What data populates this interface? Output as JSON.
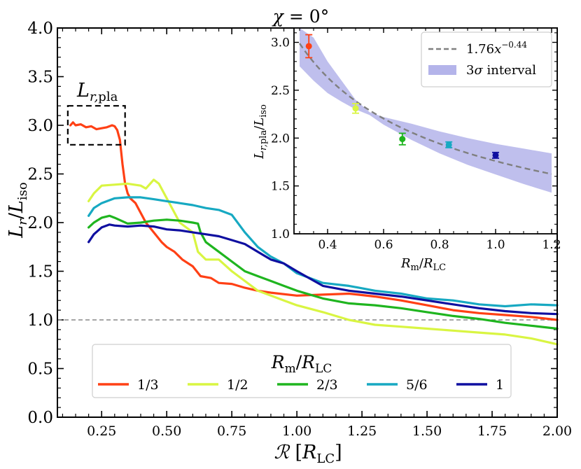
{
  "chart_data": [
    {
      "type": "line",
      "title": "",
      "xlabel": "ℛ [R_LC]",
      "ylabel": "L_r / L_iso",
      "xlim": [
        0.08,
        2.0
      ],
      "ylim": [
        0.0,
        4.0
      ],
      "x_ticks": [
        "0.25",
        "0.50",
        "0.75",
        "1.00",
        "1.25",
        "1.50",
        "1.75",
        "2.00"
      ],
      "y_ticks": [
        "0.0",
        "0.5",
        "1.0",
        "1.5",
        "2.0",
        "2.5",
        "3.0",
        "3.5",
        "4.0"
      ],
      "reference_line": {
        "y": 1.0,
        "style": "dashed",
        "color": "#888888"
      },
      "annotation": {
        "text": "L_{r,pla}",
        "x_range": [
          0.12,
          0.34
        ],
        "y_range": [
          2.8,
          3.2
        ]
      },
      "legend": {
        "title": "R_m / R_LC",
        "placement": "lower-center",
        "entries": [
          "1/3",
          "1/2",
          "2/3",
          "5/6",
          "1"
        ]
      },
      "series": [
        {
          "name": "1/3",
          "color": "#ff4015",
          "x": [
            0.13,
            0.14,
            0.15,
            0.17,
            0.19,
            0.21,
            0.23,
            0.25,
            0.27,
            0.29,
            0.3,
            0.31,
            0.32,
            0.33,
            0.34,
            0.35,
            0.36,
            0.38,
            0.4,
            0.42,
            0.45,
            0.48,
            0.5,
            0.53,
            0.56,
            0.6,
            0.63,
            0.67,
            0.7,
            0.75,
            0.8,
            0.85,
            0.9,
            1.0,
            1.1,
            1.2,
            1.3,
            1.4,
            1.5,
            1.6,
            1.7,
            1.8,
            1.9,
            2.0
          ],
          "y": [
            3.0,
            3.03,
            3.0,
            3.01,
            2.98,
            2.99,
            2.96,
            2.97,
            2.98,
            3.0,
            2.99,
            2.95,
            2.85,
            2.6,
            2.4,
            2.3,
            2.25,
            2.2,
            2.1,
            2.0,
            1.9,
            1.8,
            1.75,
            1.7,
            1.62,
            1.55,
            1.45,
            1.43,
            1.38,
            1.37,
            1.33,
            1.3,
            1.28,
            1.25,
            1.26,
            1.27,
            1.24,
            1.2,
            1.15,
            1.1,
            1.07,
            1.05,
            1.03,
            1.0
          ]
        },
        {
          "name": "1/2",
          "color": "#d9f542",
          "x": [
            0.2,
            0.22,
            0.25,
            0.3,
            0.35,
            0.4,
            0.42,
            0.45,
            0.47,
            0.5,
            0.55,
            0.6,
            0.62,
            0.65,
            0.7,
            0.75,
            0.8,
            0.85,
            0.9,
            0.95,
            1.0,
            1.1,
            1.2,
            1.3,
            1.4,
            1.5,
            1.6,
            1.7,
            1.8,
            1.9,
            2.0
          ],
          "y": [
            2.22,
            2.3,
            2.38,
            2.39,
            2.4,
            2.38,
            2.35,
            2.44,
            2.4,
            2.25,
            2.0,
            1.9,
            1.7,
            1.62,
            1.62,
            1.5,
            1.4,
            1.3,
            1.25,
            1.2,
            1.15,
            1.08,
            1.0,
            0.95,
            0.93,
            0.91,
            0.89,
            0.87,
            0.85,
            0.81,
            0.75
          ]
        },
        {
          "name": "2/3",
          "color": "#1fb51f",
          "x": [
            0.2,
            0.22,
            0.25,
            0.28,
            0.3,
            0.35,
            0.4,
            0.45,
            0.5,
            0.55,
            0.6,
            0.62,
            0.63,
            0.65,
            0.7,
            0.75,
            0.8,
            0.85,
            0.9,
            0.95,
            1.0,
            1.1,
            1.2,
            1.3,
            1.4,
            1.5,
            1.6,
            1.7,
            1.8,
            1.9,
            2.0
          ],
          "y": [
            1.95,
            2.0,
            2.05,
            2.07,
            2.05,
            1.99,
            2.0,
            2.02,
            2.03,
            2.02,
            2.0,
            1.99,
            1.9,
            1.8,
            1.7,
            1.6,
            1.5,
            1.45,
            1.4,
            1.35,
            1.3,
            1.22,
            1.17,
            1.15,
            1.12,
            1.08,
            1.04,
            1.01,
            0.97,
            0.94,
            0.91
          ]
        },
        {
          "name": "5/6",
          "color": "#17a9c2",
          "x": [
            0.2,
            0.22,
            0.25,
            0.3,
            0.35,
            0.4,
            0.45,
            0.5,
            0.55,
            0.6,
            0.65,
            0.7,
            0.75,
            0.8,
            0.85,
            0.9,
            0.95,
            1.0,
            1.1,
            1.2,
            1.3,
            1.4,
            1.5,
            1.6,
            1.7,
            1.8,
            1.9,
            2.0
          ],
          "y": [
            2.07,
            2.15,
            2.2,
            2.25,
            2.26,
            2.26,
            2.24,
            2.22,
            2.2,
            2.18,
            2.15,
            2.13,
            2.08,
            1.9,
            1.75,
            1.65,
            1.58,
            1.48,
            1.38,
            1.35,
            1.3,
            1.27,
            1.22,
            1.2,
            1.16,
            1.14,
            1.16,
            1.15
          ]
        },
        {
          "name": "1",
          "color": "#0f0fa0",
          "x": [
            0.2,
            0.22,
            0.25,
            0.28,
            0.3,
            0.35,
            0.4,
            0.45,
            0.5,
            0.55,
            0.6,
            0.65,
            0.7,
            0.75,
            0.8,
            0.85,
            0.9,
            0.95,
            1.0,
            1.1,
            1.2,
            1.3,
            1.4,
            1.5,
            1.6,
            1.7,
            1.8,
            1.9,
            2.0
          ],
          "y": [
            1.8,
            1.88,
            1.95,
            1.98,
            1.97,
            1.96,
            1.97,
            1.96,
            1.93,
            1.92,
            1.9,
            1.88,
            1.86,
            1.82,
            1.78,
            1.7,
            1.62,
            1.58,
            1.5,
            1.35,
            1.3,
            1.27,
            1.24,
            1.2,
            1.16,
            1.12,
            1.09,
            1.07,
            1.06
          ]
        }
      ]
    },
    {
      "type": "scatter",
      "title": "χ = 0°",
      "xlabel": "R_m / R_LC",
      "ylabel": "L_{r,pla} / L_iso",
      "xlim": [
        0.28,
        1.22
      ],
      "ylim": [
        1.0,
        3.15
      ],
      "x_ticks": [
        "0.4",
        "0.6",
        "0.8",
        "1.0",
        "1.2"
      ],
      "y_ticks": [
        "1.0",
        "1.5",
        "2.0",
        "2.5",
        "3.0"
      ],
      "legend": {
        "placement": "top-right",
        "entries": [
          {
            "label": "1.76x^{-0.44}",
            "kind": "dashed-line",
            "color": "#808080"
          },
          {
            "label": "3σ interval",
            "kind": "band",
            "color": "#b4b4ea"
          }
        ]
      },
      "fit": {
        "a": 1.76,
        "b": -0.44
      },
      "band": {
        "x": [
          0.3,
          0.35,
          0.4,
          0.45,
          0.5,
          0.55,
          0.6,
          0.7,
          0.8,
          0.9,
          1.0,
          1.1,
          1.2
        ],
        "lower": [
          2.75,
          2.6,
          2.47,
          2.38,
          2.3,
          2.24,
          2.14,
          1.98,
          1.84,
          1.72,
          1.62,
          1.52,
          1.43
        ],
        "upper": [
          3.15,
          3.05,
          2.8,
          2.6,
          2.4,
          2.27,
          2.22,
          2.15,
          2.07,
          2.0,
          1.94,
          1.89,
          1.84
        ]
      },
      "points": [
        {
          "x": 0.333,
          "y": 2.96,
          "err": 0.12,
          "color": "#ff4015"
        },
        {
          "x": 0.5,
          "y": 2.31,
          "err": 0.05,
          "color": "#d9f542"
        },
        {
          "x": 0.667,
          "y": 1.99,
          "err": 0.06,
          "color": "#1fb51f"
        },
        {
          "x": 0.833,
          "y": 1.93,
          "err": 0.03,
          "color": "#17a9c2"
        },
        {
          "x": 1.0,
          "y": 1.82,
          "err": 0.03,
          "color": "#0f0fa0"
        }
      ]
    }
  ]
}
